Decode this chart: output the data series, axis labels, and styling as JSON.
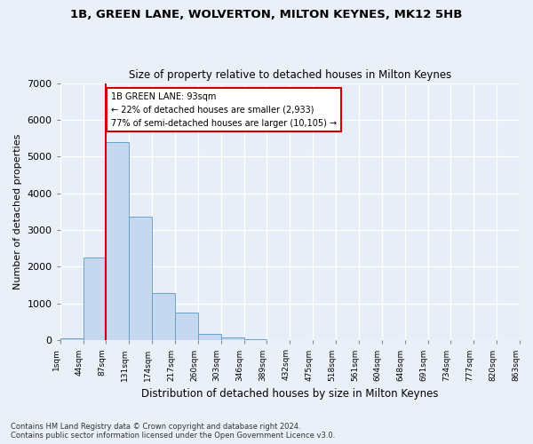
{
  "title1": "1B, GREEN LANE, WOLVERTON, MILTON KEYNES, MK12 5HB",
  "title2": "Size of property relative to detached houses in Milton Keynes",
  "xlabel": "Distribution of detached houses by size in Milton Keynes",
  "ylabel": "Number of detached properties",
  "footnote": "Contains HM Land Registry data © Crown copyright and database right 2024.\nContains public sector information licensed under the Open Government Licence v3.0.",
  "bar_color": "#c5d8f0",
  "bar_edge_color": "#5a9abf",
  "bin_labels": [
    "1sqm",
    "44sqm",
    "87sqm",
    "131sqm",
    "174sqm",
    "217sqm",
    "260sqm",
    "303sqm",
    "346sqm",
    "389sqm",
    "432sqm",
    "475sqm",
    "518sqm",
    "561sqm",
    "604sqm",
    "648sqm",
    "691sqm",
    "734sqm",
    "777sqm",
    "820sqm",
    "863sqm"
  ],
  "bar_heights": [
    55,
    2260,
    5400,
    3370,
    1280,
    760,
    170,
    80,
    30,
    5,
    2,
    0,
    0,
    0,
    0,
    0,
    0,
    0,
    0,
    0
  ],
  "annotation_title": "1B GREEN LANE: 93sqm",
  "annotation_line1": "← 22% of detached houses are smaller (2,933)",
  "annotation_line2": "77% of semi-detached houses are larger (10,105) →",
  "ylim": [
    0,
    7000
  ],
  "yticks": [
    0,
    1000,
    2000,
    3000,
    4000,
    5000,
    6000,
    7000
  ],
  "background_color": "#e8eef7",
  "grid_color": "#ffffff",
  "annotation_box_color": "#ffffff",
  "annotation_border_color": "#cc0000",
  "red_line_color": "#cc0000",
  "fig_bg_color": "#eaf0f8"
}
